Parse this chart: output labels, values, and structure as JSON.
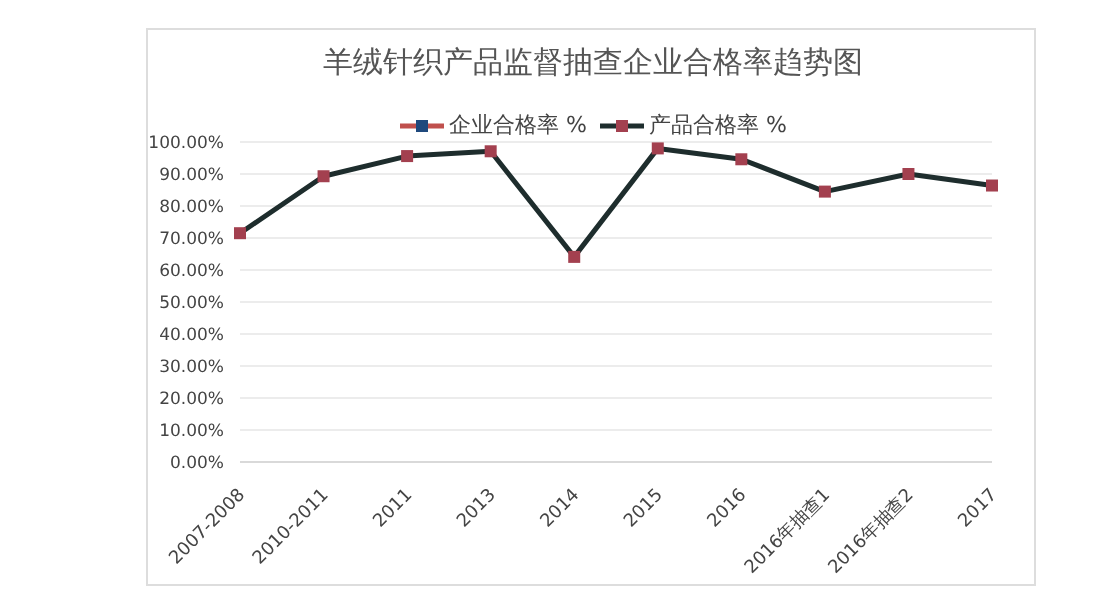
{
  "chart_data": {
    "type": "line",
    "title": "羊绒针织产品监督抽查企业合格率趋势图",
    "categories": [
      "2007-2008",
      "2010-2011",
      "2011",
      "2013",
      "2014",
      "2015",
      "2016",
      "2016年抽查1",
      "2016年抽查2",
      "2017"
    ],
    "series": [
      {
        "name": "企业合格率 %",
        "color": "#c0504d",
        "values": [
          null,
          null,
          null,
          null,
          null,
          null,
          null,
          null,
          null,
          null
        ]
      },
      {
        "name": "产品合格率 %",
        "color": "#1e2d2d",
        "values": [
          71.5,
          89.3,
          95.6,
          97.1,
          64.1,
          98.0,
          94.6,
          84.5,
          90.0,
          86.4
        ]
      }
    ],
    "ylim": [
      0,
      100
    ],
    "yticks": [
      {
        "value": 0,
        "label": "0.00%"
      },
      {
        "value": 10,
        "label": "10.00%"
      },
      {
        "value": 20,
        "label": "20.00%"
      },
      {
        "value": 30,
        "label": "30.00%"
      },
      {
        "value": 40,
        "label": "40.00%"
      },
      {
        "value": 50,
        "label": "50.00%"
      },
      {
        "value": 60,
        "label": "60.00%"
      },
      {
        "value": 70,
        "label": "70.00%"
      },
      {
        "value": 80,
        "label": "80.00%"
      },
      {
        "value": 90,
        "label": "90.00%"
      },
      {
        "value": 100,
        "label": "100.00%"
      }
    ],
    "grid": "y",
    "legend": "top",
    "marker": "square",
    "line_style": "solid"
  }
}
